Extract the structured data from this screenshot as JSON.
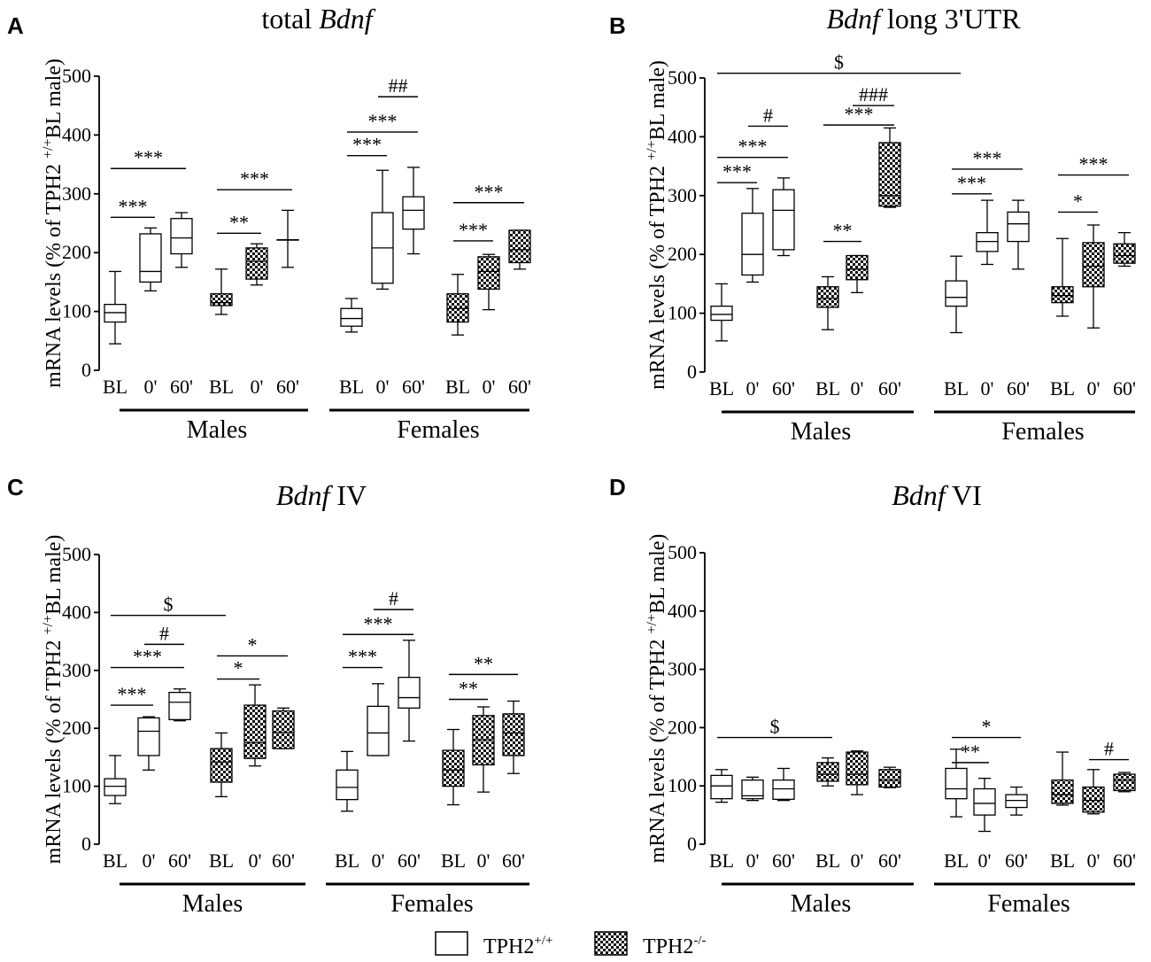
{
  "colors": {
    "ink": "#000000",
    "wt_fill": "#ffffff",
    "ko_pattern": "checkerboard"
  },
  "chart_data": [
    {
      "panel": "A",
      "type": "box",
      "title": "total Bdnf",
      "title_italic": "Bdnf",
      "ylabel": "mRNA levels (% of TPH2 +/+BL male)",
      "ylim": [
        0,
        500
      ],
      "yticks": [
        "0",
        "100",
        "200",
        "300",
        "400",
        "500"
      ],
      "groups": [
        "Males",
        "Females"
      ],
      "categories": [
        "BL",
        "0'",
        "60'",
        "BL",
        "0'",
        "60'",
        "BL",
        "0'",
        "60'",
        "BL",
        "0'",
        "60'"
      ],
      "series": [
        {
          "name": "TPH2+/+ Males BL",
          "genotype": "WT",
          "stats": [
            45,
            82,
            98,
            112,
            168
          ]
        },
        {
          "name": "TPH2+/+ Males 0'",
          "genotype": "WT",
          "stats": [
            135,
            150,
            168,
            232,
            242
          ]
        },
        {
          "name": "TPH2+/+ Males 60'",
          "genotype": "WT",
          "stats": [
            175,
            198,
            225,
            258,
            268
          ]
        },
        {
          "name": "TPH2-/- Males BL",
          "genotype": "KO",
          "stats": [
            95,
            110,
            115,
            130,
            172
          ]
        },
        {
          "name": "TPH2-/- Males 0'",
          "genotype": "KO",
          "stats": [
            145,
            155,
            185,
            208,
            215
          ]
        },
        {
          "name": "TPH2-/- Males 60'",
          "genotype": "KO",
          "stats": [
            175,
            222,
            222,
            222,
            272
          ]
        },
        {
          "name": "TPH2+/+ Females BL",
          "genotype": "WT",
          "stats": [
            65,
            75,
            88,
            105,
            122
          ]
        },
        {
          "name": "TPH2+/+ Females 0'",
          "genotype": "WT",
          "stats": [
            138,
            148,
            208,
            268,
            340
          ]
        },
        {
          "name": "TPH2+/+ Females 60'",
          "genotype": "WT",
          "stats": [
            198,
            240,
            272,
            295,
            345
          ]
        },
        {
          "name": "TPH2-/- Females BL",
          "genotype": "KO",
          "stats": [
            60,
            82,
            105,
            130,
            163
          ]
        },
        {
          "name": "TPH2-/- Females 0'",
          "genotype": "KO",
          "stats": [
            103,
            138,
            168,
            193,
            197
          ]
        },
        {
          "name": "TPH2-/- Females 60'",
          "genotype": "KO",
          "stats": [
            172,
            183,
            205,
            238,
            238
          ]
        }
      ],
      "annotations": [
        {
          "text": "***",
          "from": 0,
          "to": 1,
          "y": 260
        },
        {
          "text": "***",
          "from": 0,
          "to": 2,
          "y": 343
        },
        {
          "text": "**",
          "from": 3,
          "to": 4,
          "y": 233
        },
        {
          "text": "***",
          "from": 3,
          "to": 5,
          "y": 307
        },
        {
          "text": "***",
          "from": 6,
          "to": 7,
          "y": 365
        },
        {
          "text": "***",
          "from": 6,
          "to": 8,
          "y": 405
        },
        {
          "text": "##",
          "from": 7,
          "to": 8,
          "y": 465
        },
        {
          "text": "***",
          "from": 9,
          "to": 10,
          "y": 220
        },
        {
          "text": "***",
          "from": 9,
          "to": 11,
          "y": 285
        }
      ]
    },
    {
      "panel": "B",
      "type": "box",
      "title": "Bdnf long 3'UTR",
      "title_italic": "Bdnf",
      "ylabel": "mRNA levels (% of TPH2 +/+BL male)",
      "ylim": [
        0,
        500
      ],
      "yticks": [
        "0",
        "100",
        "200",
        "300",
        "400",
        "500"
      ],
      "groups": [
        "Males",
        "Females"
      ],
      "categories": [
        "BL",
        "0'",
        "60'",
        "BL",
        "0'",
        "60'",
        "BL",
        "0'",
        "60'",
        "BL",
        "0'",
        "60'"
      ],
      "series": [
        {
          "name": "TPH2+/+ Males BL",
          "genotype": "WT",
          "stats": [
            53,
            88,
            98,
            112,
            150
          ]
        },
        {
          "name": "TPH2+/+ Males 0'",
          "genotype": "WT",
          "stats": [
            153,
            165,
            200,
            270,
            312
          ]
        },
        {
          "name": "TPH2+/+ Males 60'",
          "genotype": "WT",
          "stats": [
            198,
            208,
            275,
            310,
            330
          ]
        },
        {
          "name": "TPH2-/- Males BL",
          "genotype": "KO",
          "stats": [
            72,
            110,
            125,
            145,
            162
          ]
        },
        {
          "name": "TPH2-/- Males 0'",
          "genotype": "KO",
          "stats": [
            135,
            157,
            175,
            198,
            198
          ]
        },
        {
          "name": "TPH2-/- Males 60'",
          "genotype": "KO",
          "stats": [
            280,
            282,
            300,
            390,
            415
          ]
        },
        {
          "name": "TPH2+/+ Females BL",
          "genotype": "WT",
          "stats": [
            67,
            112,
            127,
            155,
            197
          ]
        },
        {
          "name": "TPH2+/+ Females 0'",
          "genotype": "WT",
          "stats": [
            183,
            205,
            222,
            237,
            292
          ]
        },
        {
          "name": "TPH2+/+ Females 60'",
          "genotype": "WT",
          "stats": [
            175,
            222,
            252,
            272,
            292
          ]
        },
        {
          "name": "TPH2-/- Females BL",
          "genotype": "KO",
          "stats": [
            95,
            118,
            130,
            145,
            227
          ]
        },
        {
          "name": "TPH2-/- Females 0'",
          "genotype": "KO",
          "stats": [
            75,
            145,
            180,
            220,
            250
          ]
        },
        {
          "name": "TPH2-/- Females 60'",
          "genotype": "KO",
          "stats": [
            180,
            185,
            198,
            218,
            237
          ]
        }
      ],
      "annotations": [
        {
          "text": "***",
          "from": 0,
          "to": 1,
          "y": 322
        },
        {
          "text": "***",
          "from": 0,
          "to": 2,
          "y": 365
        },
        {
          "text": "#",
          "from": 1,
          "to": 2,
          "y": 418
        },
        {
          "text": "**",
          "from": 3,
          "to": 4,
          "y": 222
        },
        {
          "text": "***",
          "from": 3,
          "to": 5,
          "y": 420
        },
        {
          "text": "###",
          "from": 4,
          "to": 5,
          "y": 453
        },
        {
          "text": "$",
          "from": 0,
          "to": 6,
          "y": 508
        },
        {
          "text": "***",
          "from": 6,
          "to": 7,
          "y": 303
        },
        {
          "text": "***",
          "from": 6,
          "to": 8,
          "y": 345
        },
        {
          "text": "*",
          "from": 9,
          "to": 10,
          "y": 272
        },
        {
          "text": "***",
          "from": 9,
          "to": 11,
          "y": 335
        }
      ]
    },
    {
      "panel": "C",
      "type": "box",
      "title": "Bdnf IV",
      "title_italic": "Bdnf",
      "ylabel": "mRNA levels (% of TPH2 +/+BL male)",
      "ylim": [
        0,
        500
      ],
      "yticks": [
        "0",
        "100",
        "200",
        "300",
        "400",
        "500"
      ],
      "groups": [
        "Males",
        "Females"
      ],
      "categories": [
        "BL",
        "0'",
        "60'",
        "BL",
        "0'",
        "60'",
        "BL",
        "0'",
        "60'",
        "BL",
        "0'",
        "60'"
      ],
      "series": [
        {
          "name": "TPH2+/+ Males BL",
          "genotype": "WT",
          "stats": [
            70,
            84,
            100,
            113,
            153
          ]
        },
        {
          "name": "TPH2+/+ Males 0'",
          "genotype": "WT",
          "stats": [
            128,
            153,
            195,
            218,
            220
          ]
        },
        {
          "name": "TPH2+/+ Males 60'",
          "genotype": "WT",
          "stats": [
            213,
            215,
            245,
            262,
            268
          ]
        },
        {
          "name": "TPH2-/- Males BL",
          "genotype": "KO",
          "stats": [
            82,
            107,
            142,
            165,
            192
          ]
        },
        {
          "name": "TPH2-/- Males 0'",
          "genotype": "KO",
          "stats": [
            135,
            148,
            175,
            240,
            275
          ]
        },
        {
          "name": "TPH2-/- Males 60'",
          "genotype": "KO",
          "stats": [
            165,
            165,
            193,
            230,
            235
          ]
        },
        {
          "name": "TPH2+/+ Females BL",
          "genotype": "WT",
          "stats": [
            57,
            77,
            98,
            128,
            160
          ]
        },
        {
          "name": "TPH2+/+ Females 0'",
          "genotype": "WT",
          "stats": [
            153,
            153,
            192,
            238,
            277
          ]
        },
        {
          "name": "TPH2+/+ Females 60'",
          "genotype": "WT",
          "stats": [
            178,
            235,
            253,
            288,
            352
          ]
        },
        {
          "name": "TPH2-/- Females BL",
          "genotype": "KO",
          "stats": [
            68,
            100,
            128,
            162,
            198
          ]
        },
        {
          "name": "TPH2-/- Females 0'",
          "genotype": "KO",
          "stats": [
            90,
            137,
            180,
            222,
            237
          ]
        },
        {
          "name": "TPH2-/- Females 60'",
          "genotype": "KO",
          "stats": [
            122,
            153,
            192,
            225,
            247
          ]
        }
      ],
      "annotations": [
        {
          "text": "***",
          "from": 0,
          "to": 1,
          "y": 240
        },
        {
          "text": "***",
          "from": 0,
          "to": 2,
          "y": 305
        },
        {
          "text": "#",
          "from": 1,
          "to": 2,
          "y": 345
        },
        {
          "text": "$",
          "from": 0,
          "to": 3,
          "y": 395
        },
        {
          "text": "*",
          "from": 3,
          "to": 4,
          "y": 285
        },
        {
          "text": "*",
          "from": 3,
          "to": 5,
          "y": 325
        },
        {
          "text": "***",
          "from": 6,
          "to": 7,
          "y": 305
        },
        {
          "text": "***",
          "from": 6,
          "to": 8,
          "y": 362
        },
        {
          "text": "#",
          "from": 7,
          "to": 8,
          "y": 405
        },
        {
          "text": "**",
          "from": 9,
          "to": 10,
          "y": 250
        },
        {
          "text": "**",
          "from": 9,
          "to": 11,
          "y": 293
        }
      ]
    },
    {
      "panel": "D",
      "type": "box",
      "title": "Bdnf VI",
      "title_italic": "Bdnf",
      "ylabel": "mRNA levels (% of TPH2 +/+BL male)",
      "ylim": [
        0,
        500
      ],
      "yticks": [
        "0",
        "100",
        "200",
        "300",
        "400",
        "500"
      ],
      "groups": [
        "Males",
        "Females"
      ],
      "categories": [
        "BL",
        "0'",
        "60'",
        "BL",
        "0'",
        "60'",
        "BL",
        "0'",
        "60'",
        "BL",
        "0'",
        "60'"
      ],
      "series": [
        {
          "name": "TPH2+/+ Males BL",
          "genotype": "WT",
          "stats": [
            72,
            78,
            100,
            118,
            128
          ]
        },
        {
          "name": "TPH2+/+ Males 0'",
          "genotype": "WT",
          "stats": [
            75,
            78,
            83,
            110,
            115
          ]
        },
        {
          "name": "TPH2+/+ Males 60'",
          "genotype": "WT",
          "stats": [
            75,
            77,
            95,
            110,
            130
          ]
        },
        {
          "name": "TPH2-/- Males BL",
          "genotype": "KO",
          "stats": [
            100,
            108,
            120,
            140,
            148
          ]
        },
        {
          "name": "TPH2-/- Males 0'",
          "genotype": "KO",
          "stats": [
            85,
            102,
            120,
            158,
            160
          ]
        },
        {
          "name": "TPH2-/- Males 60'",
          "genotype": "KO",
          "stats": [
            97,
            98,
            110,
            128,
            132
          ]
        },
        {
          "name": "TPH2+/+ Females BL",
          "genotype": "WT",
          "stats": [
            47,
            78,
            95,
            130,
            163
          ]
        },
        {
          "name": "TPH2+/+ Females 0'",
          "genotype": "WT",
          "stats": [
            22,
            50,
            70,
            95,
            113
          ]
        },
        {
          "name": "TPH2+/+ Females 60'",
          "genotype": "WT",
          "stats": [
            50,
            63,
            75,
            85,
            98
          ]
        },
        {
          "name": "TPH2-/- Females BL",
          "genotype": "KO",
          "stats": [
            67,
            70,
            85,
            110,
            158
          ]
        },
        {
          "name": "TPH2-/- Females 0'",
          "genotype": "KO",
          "stats": [
            52,
            55,
            75,
            98,
            128
          ]
        },
        {
          "name": "TPH2-/- Females 60'",
          "genotype": "KO",
          "stats": [
            90,
            92,
            110,
            120,
            123
          ]
        }
      ],
      "annotations": [
        {
          "text": "$",
          "from": 0,
          "to": 3,
          "y": 183
        },
        {
          "text": "**",
          "from": 6,
          "to": 7,
          "y": 140
        },
        {
          "text": "*",
          "from": 6,
          "to": 8,
          "y": 183
        },
        {
          "text": "#",
          "from": 10,
          "to": 11,
          "y": 145
        }
      ]
    }
  ],
  "legend": {
    "items": [
      {
        "key": "wt",
        "base": "TPH2",
        "sup": "+/+"
      },
      {
        "key": "ko",
        "base": "TPH2",
        "sup": "-/-"
      }
    ]
  }
}
